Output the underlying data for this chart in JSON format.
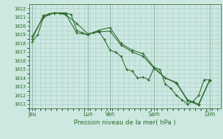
{
  "bg_color": "#cce8e0",
  "grid_color": "#aacccc",
  "line_color": "#2d6b2d",
  "marker_color": "#2d6b2d",
  "xlabel": "Pression niveau de la mer( hPa )",
  "ylim": [
    1010.5,
    1022.5
  ],
  "yticks": [
    1011,
    1012,
    1013,
    1014,
    1015,
    1016,
    1017,
    1018,
    1019,
    1020,
    1021,
    1022
  ],
  "day_positions": [
    0,
    5,
    7,
    11,
    16
  ],
  "day_labels": [
    "Jeu",
    "Lun",
    "Ven",
    "Sam",
    "Dim"
  ],
  "xlim": [
    -0.3,
    17.0
  ],
  "series1_x": [
    0,
    0.5,
    1,
    1.5,
    2,
    2.5,
    3,
    3.5,
    4,
    4.5,
    5,
    5.5,
    6,
    6.5,
    7,
    7.5,
    8,
    8.5,
    9,
    9.5,
    10,
    10.5,
    11,
    11.5,
    12,
    12.5,
    13,
    13.5,
    14,
    14.5,
    15,
    15.5,
    16
  ],
  "series1_y": [
    1018.2,
    1019.0,
    1021.0,
    1021.4,
    1021.5,
    1021.5,
    1021.5,
    1021.3,
    1019.5,
    1019.2,
    1019.0,
    1019.2,
    1019.4,
    1018.4,
    1017.2,
    1017.0,
    1016.5,
    1015.0,
    1014.8,
    1014.0,
    1014.1,
    1013.8,
    1015.2,
    1015.0,
    1013.3,
    1012.8,
    1012.0,
    1011.5,
    1011.0,
    1011.3,
    1012.0,
    1013.8,
    1013.8
  ],
  "series2_x": [
    0,
    1,
    2,
    3,
    4,
    5,
    6,
    7,
    8,
    9,
    10,
    11,
    12,
    13,
    14,
    15,
    16
  ],
  "series2_y": [
    1018.5,
    1021.2,
    1021.5,
    1021.4,
    1019.2,
    1019.0,
    1019.5,
    1019.8,
    1018.0,
    1017.2,
    1016.8,
    1015.2,
    1014.0,
    1013.5,
    1011.5,
    1011.0,
    1013.8
  ],
  "series3_x": [
    0,
    1,
    2,
    3,
    4,
    5,
    6,
    7,
    8,
    9,
    10,
    11,
    12,
    13,
    14,
    15,
    16
  ],
  "series3_y": [
    1018.8,
    1021.0,
    1021.5,
    1021.3,
    1020.3,
    1019.1,
    1019.3,
    1019.4,
    1017.8,
    1017.0,
    1016.5,
    1015.1,
    1014.0,
    1013.4,
    1011.4,
    1010.9,
    1013.7
  ]
}
